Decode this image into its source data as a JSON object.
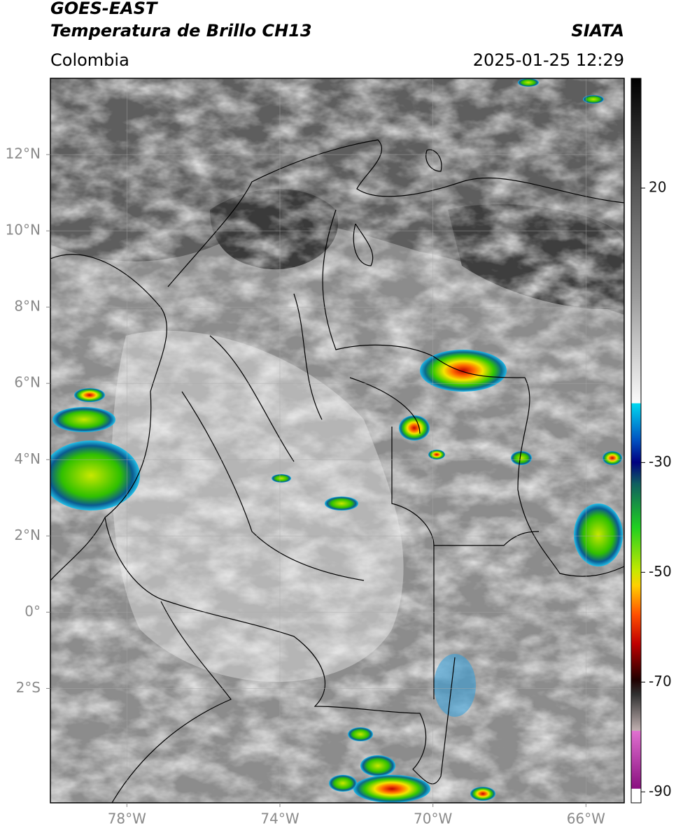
{
  "header": {
    "title": "GOES-EAST",
    "subtitle": "Temperatura de Brillo CH13",
    "source": "SIATA",
    "region": "Colombia",
    "datetime": "2025-01-25 12:29"
  },
  "map": {
    "xlim": [
      -80,
      -65
    ],
    "ylim": [
      -5,
      14
    ],
    "grid": true,
    "xticks": [
      {
        "value": -78,
        "label": "78°W"
      },
      {
        "value": -74,
        "label": "74°W"
      },
      {
        "value": -70,
        "label": "70°W"
      },
      {
        "value": -66,
        "label": "66°W"
      }
    ],
    "yticks": [
      {
        "value": 12,
        "label": "12°N"
      },
      {
        "value": 10,
        "label": "10°N"
      },
      {
        "value": 8,
        "label": "8°N"
      },
      {
        "value": 6,
        "label": "6°N"
      },
      {
        "value": 4,
        "label": "4°N"
      },
      {
        "value": 2,
        "label": "2°N"
      },
      {
        "value": 0,
        "label": "0°"
      },
      {
        "value": -2,
        "label": "2°S"
      }
    ]
  },
  "colorbar": {
    "lim": [
      -92,
      40
    ],
    "ticks": [
      20,
      -30,
      -50,
      -70,
      -90
    ]
  }
}
